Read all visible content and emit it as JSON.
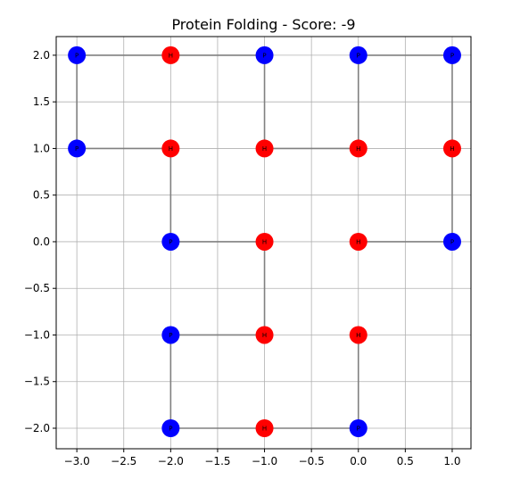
{
  "chart_data": {
    "type": "scatter",
    "title": "Protein Folding - Score: -9",
    "xlabel": "",
    "ylabel": "",
    "xlim": [
      -3.22,
      1.2
    ],
    "ylim": [
      -2.22,
      2.2
    ],
    "xticks": [
      -3.0,
      -2.5,
      -2.0,
      -1.5,
      -1.0,
      -0.5,
      0.0,
      0.5,
      1.0
    ],
    "xtick_labels": [
      "−3.0",
      "−2.5",
      "−2.0",
      "−1.5",
      "−1.0",
      "−0.5",
      "0.0",
      "0.5",
      "1.0"
    ],
    "yticks": [
      -2.0,
      -1.5,
      -1.0,
      -0.5,
      0.0,
      0.5,
      1.0,
      1.5,
      2.0
    ],
    "ytick_labels": [
      "−2.0",
      "−1.5",
      "−1.0",
      "−0.5",
      "0.0",
      "0.5",
      "1.0",
      "1.5",
      "2.0"
    ],
    "grid": true,
    "colors": {
      "H": "#ff0000",
      "P": "#0000ff",
      "chain": "#808080",
      "grid": "#b0b0b0"
    },
    "points": [
      {
        "x": 0,
        "y": -1,
        "type": "H"
      },
      {
        "x": 0,
        "y": -2,
        "type": "P"
      },
      {
        "x": -1,
        "y": -2,
        "type": "H"
      },
      {
        "x": -2,
        "y": -2,
        "type": "P"
      },
      {
        "x": -2,
        "y": -1,
        "type": "P"
      },
      {
        "x": -1,
        "y": -1,
        "type": "H"
      },
      {
        "x": -1,
        "y": 0,
        "type": "H"
      },
      {
        "x": -2,
        "y": 0,
        "type": "P"
      },
      {
        "x": -2,
        "y": 1,
        "type": "H"
      },
      {
        "x": -3,
        "y": 1,
        "type": "P"
      },
      {
        "x": -3,
        "y": 2,
        "type": "P"
      },
      {
        "x": -2,
        "y": 2,
        "type": "H"
      },
      {
        "x": -1,
        "y": 2,
        "type": "P"
      },
      {
        "x": -1,
        "y": 1,
        "type": "H"
      },
      {
        "x": 0,
        "y": 1,
        "type": "H"
      },
      {
        "x": 0,
        "y": 2,
        "type": "P"
      },
      {
        "x": 1,
        "y": 2,
        "type": "P"
      },
      {
        "x": 1,
        "y": 1,
        "type": "H"
      },
      {
        "x": 1,
        "y": 0,
        "type": "P"
      },
      {
        "x": 0,
        "y": 0,
        "type": "H"
      }
    ]
  }
}
